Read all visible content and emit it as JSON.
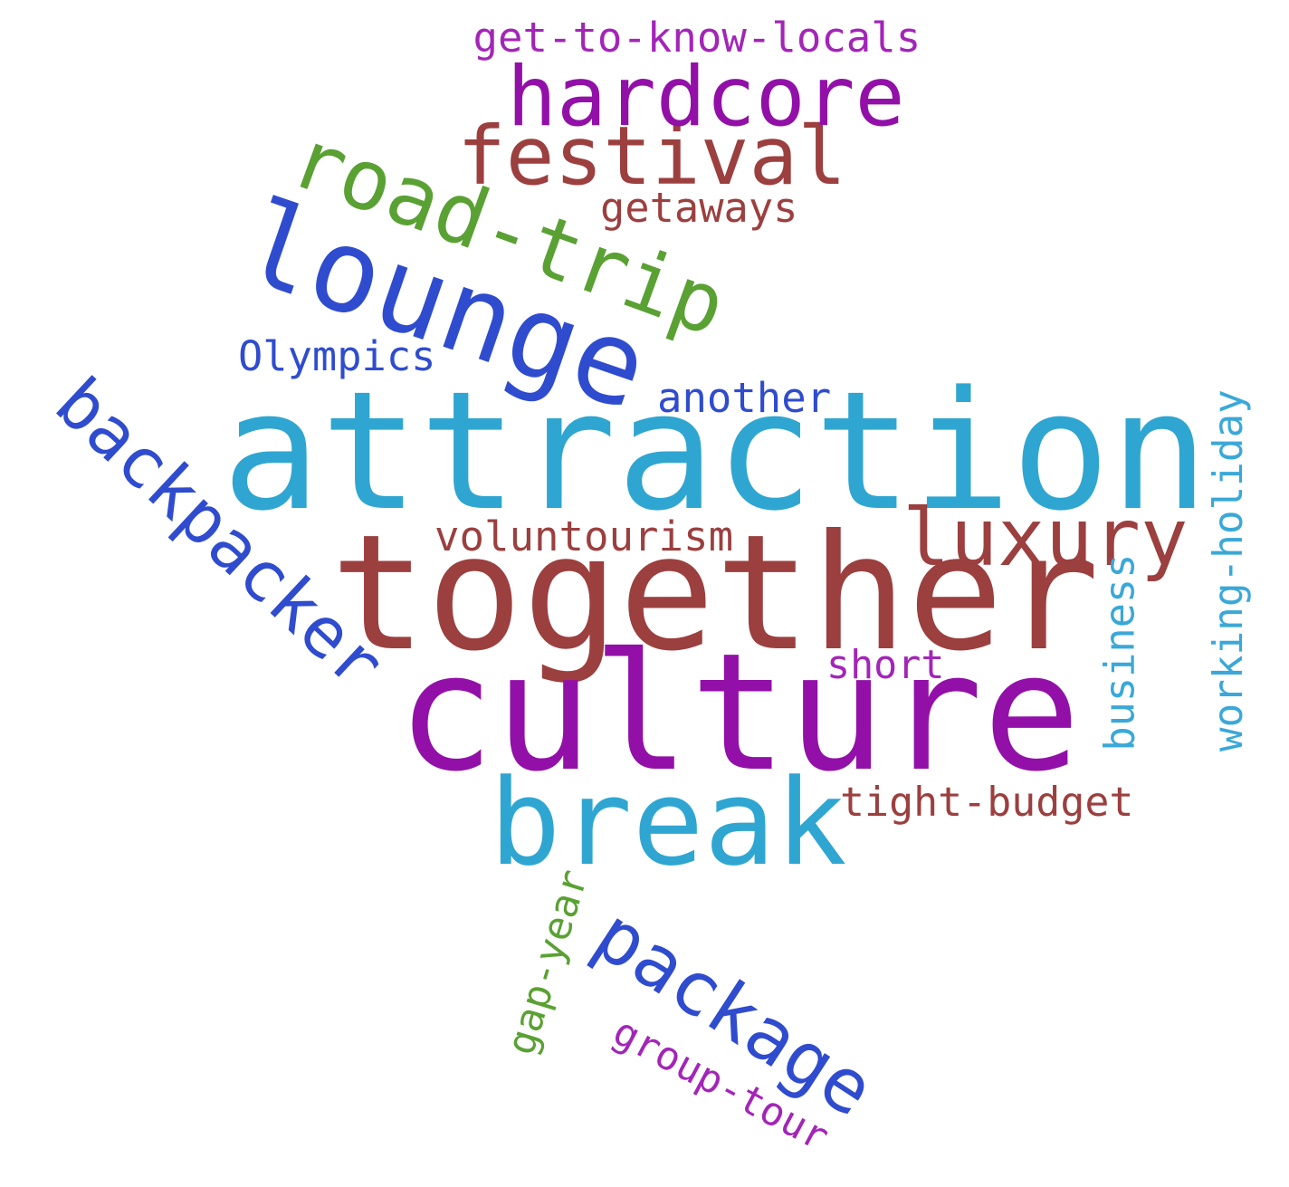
{
  "palette": {
    "cyan": "#2fa6d1",
    "brown": "#9c3f3f",
    "purple": "#9210a8",
    "blue": "#2f4ccf",
    "green": "#5aa133",
    "light_blue": "#3aa8d8",
    "light_purple": "#a325b8"
  },
  "words": [
    {
      "id": "attraction",
      "text": "attraction",
      "color_key": "cyan"
    },
    {
      "id": "together",
      "text": "together",
      "color_key": "brown"
    },
    {
      "id": "culture",
      "text": "culture",
      "color_key": "purple"
    },
    {
      "id": "lounge",
      "text": "lounge",
      "color_key": "blue"
    },
    {
      "id": "break",
      "text": "break",
      "color_key": "cyan"
    },
    {
      "id": "backpacker",
      "text": "backpacker",
      "color_key": "blue"
    },
    {
      "id": "road-trip",
      "text": "road-trip",
      "color_key": "green"
    },
    {
      "id": "package",
      "text": "package",
      "color_key": "blue"
    },
    {
      "id": "festival",
      "text": "festival",
      "color_key": "brown"
    },
    {
      "id": "hardcore",
      "text": "hardcore",
      "color_key": "purple"
    },
    {
      "id": "luxury",
      "text": "luxury",
      "color_key": "brown"
    },
    {
      "id": "working-holiday",
      "text": "working-holiday",
      "color_key": "light_blue"
    },
    {
      "id": "business",
      "text": "business",
      "color_key": "light_blue"
    },
    {
      "id": "tight-budget",
      "text": "tight-budget",
      "color_key": "brown"
    },
    {
      "id": "get-to-know-locals",
      "text": "get-to-know-locals",
      "color_key": "light_purple"
    },
    {
      "id": "voluntourism",
      "text": "voluntourism",
      "color_key": "brown"
    },
    {
      "id": "another",
      "text": "another",
      "color_key": "blue"
    },
    {
      "id": "Olympics",
      "text": "Olympics",
      "color_key": "blue"
    },
    {
      "id": "getaways",
      "text": "getaways",
      "color_key": "brown"
    },
    {
      "id": "short",
      "text": "short",
      "color_key": "light_purple"
    },
    {
      "id": "gap-year",
      "text": "gap-year",
      "color_key": "green"
    },
    {
      "id": "group-tour",
      "text": "group-tour",
      "color_key": "light_purple"
    }
  ]
}
